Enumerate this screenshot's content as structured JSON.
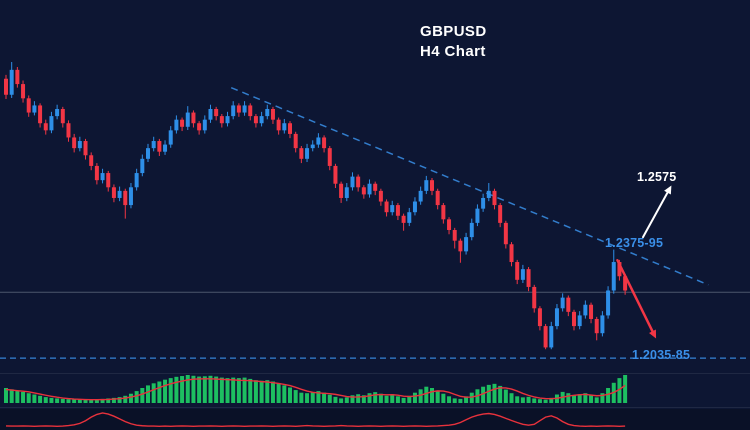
{
  "title": {
    "symbol": "GBPUSD",
    "timeframe": "H4 Chart"
  },
  "annotations": {
    "target": "1.2575",
    "resistance": "1.2375-95",
    "support": "1.2035-85"
  },
  "colors": {
    "background": "#0d1633",
    "bull": "#2e8fe8",
    "bear": "#f23645",
    "annotation_blue": "#3a8fe8",
    "hist_green": "#1dbf61",
    "signal_red": "#e8323c",
    "gray_line": "#9aa3b2",
    "title_white": "#ffffff"
  },
  "chart_data": {
    "type": "candlestick",
    "symbol": "GBPUSD",
    "timeframe": "H4",
    "ylim": [
      1.2021,
      1.2937
    ],
    "levels": {
      "support_dashed_line": 1.206,
      "mid_gray_line": 1.2245
    },
    "trendline": {
      "style": "dashed",
      "anchors": [
        [
          40,
          1.282
        ],
        [
          124,
          1.2266
        ]
      ]
    },
    "price_annotations": [
      {
        "label": "1.2575",
        "type": "upside_target",
        "price": 1.2575
      },
      {
        "label": "1.2375-95",
        "type": "resistance_zone",
        "zone": [
          1.2375,
          1.2395
        ]
      },
      {
        "label": "1.2035-85",
        "type": "support_zone",
        "zone": [
          1.2035,
          1.2085
        ]
      }
    ],
    "arrows": [
      {
        "name": "bullish-breakout-arrow",
        "color": "#ffffff",
        "width": 2,
        "from": [
          112.5,
          1.24
        ],
        "to": [
          117.5,
          1.2545
        ]
      },
      {
        "name": "bearish-rejection-arrow",
        "color": "#f23645",
        "width": 2.5,
        "from": [
          108,
          1.2335
        ],
        "to": [
          114.8,
          1.2115
        ]
      }
    ],
    "candles": [
      [
        1.2845,
        1.2856,
        1.2788,
        1.28
      ],
      [
        1.28,
        1.2892,
        1.2791,
        1.287
      ],
      [
        1.287,
        1.2878,
        1.282,
        1.283
      ],
      [
        1.283,
        1.284,
        1.2778,
        1.279
      ],
      [
        1.279,
        1.2798,
        1.2738,
        1.275
      ],
      [
        1.275,
        1.2782,
        1.2742,
        1.277
      ],
      [
        1.277,
        1.2776,
        1.2708,
        1.272
      ],
      [
        1.272,
        1.273,
        1.2688,
        1.27
      ],
      [
        1.27,
        1.2752,
        1.2692,
        1.274
      ],
      [
        1.274,
        1.2772,
        1.2731,
        1.276
      ],
      [
        1.276,
        1.2766,
        1.2708,
        1.272
      ],
      [
        1.272,
        1.2728,
        1.2668,
        1.268
      ],
      [
        1.268,
        1.269,
        1.2638,
        1.265
      ],
      [
        1.265,
        1.2682,
        1.2641,
        1.267
      ],
      [
        1.267,
        1.2676,
        1.2618,
        1.263
      ],
      [
        1.263,
        1.2638,
        1.2588,
        1.26
      ],
      [
        1.26,
        1.2608,
        1.2548,
        1.256
      ],
      [
        1.256,
        1.2592,
        1.2551,
        1.258
      ],
      [
        1.258,
        1.2586,
        1.2528,
        1.254
      ],
      [
        1.254,
        1.2548,
        1.2498,
        1.251
      ],
      [
        1.251,
        1.2542,
        1.2501,
        1.253
      ],
      [
        1.253,
        1.2536,
        1.2452,
        1.249
      ],
      [
        1.249,
        1.2552,
        1.2481,
        1.254
      ],
      [
        1.254,
        1.2592,
        1.2531,
        1.258
      ],
      [
        1.258,
        1.2632,
        1.2571,
        1.262
      ],
      [
        1.262,
        1.2662,
        1.2611,
        1.265
      ],
      [
        1.265,
        1.2682,
        1.2641,
        1.267
      ],
      [
        1.267,
        1.2676,
        1.2628,
        1.264
      ],
      [
        1.264,
        1.2672,
        1.2631,
        1.266
      ],
      [
        1.266,
        1.2712,
        1.2651,
        1.27
      ],
      [
        1.27,
        1.2742,
        1.2691,
        1.273
      ],
      [
        1.273,
        1.2736,
        1.2698,
        1.271
      ],
      [
        1.271,
        1.2768,
        1.2701,
        1.275
      ],
      [
        1.275,
        1.2756,
        1.2708,
        1.272
      ],
      [
        1.272,
        1.2726,
        1.2688,
        1.27
      ],
      [
        1.27,
        1.2742,
        1.2691,
        1.273
      ],
      [
        1.273,
        1.2772,
        1.2721,
        1.276
      ],
      [
        1.276,
        1.2766,
        1.2728,
        1.274
      ],
      [
        1.274,
        1.2746,
        1.2708,
        1.272
      ],
      [
        1.272,
        1.2752,
        1.2711,
        1.274
      ],
      [
        1.274,
        1.2782,
        1.2731,
        1.277
      ],
      [
        1.277,
        1.2776,
        1.2738,
        1.275
      ],
      [
        1.275,
        1.2782,
        1.2741,
        1.277
      ],
      [
        1.277,
        1.2776,
        1.2728,
        1.274
      ],
      [
        1.274,
        1.2746,
        1.2708,
        1.272
      ],
      [
        1.272,
        1.2752,
        1.2711,
        1.274
      ],
      [
        1.274,
        1.2772,
        1.2731,
        1.276
      ],
      [
        1.276,
        1.2766,
        1.2718,
        1.273
      ],
      [
        1.273,
        1.2736,
        1.2688,
        1.27
      ],
      [
        1.27,
        1.2732,
        1.2691,
        1.272
      ],
      [
        1.272,
        1.2726,
        1.2678,
        1.269
      ],
      [
        1.269,
        1.2696,
        1.2638,
        1.265
      ],
      [
        1.265,
        1.2656,
        1.2608,
        1.262
      ],
      [
        1.262,
        1.2662,
        1.2611,
        1.265
      ],
      [
        1.265,
        1.2672,
        1.2641,
        1.266
      ],
      [
        1.266,
        1.2692,
        1.2651,
        1.268
      ],
      [
        1.268,
        1.2686,
        1.2638,
        1.265
      ],
      [
        1.265,
        1.2656,
        1.2588,
        1.26
      ],
      [
        1.26,
        1.2606,
        1.2538,
        1.255
      ],
      [
        1.255,
        1.2556,
        1.2496,
        1.251
      ],
      [
        1.251,
        1.2552,
        1.2501,
        1.254
      ],
      [
        1.254,
        1.2582,
        1.2531,
        1.257
      ],
      [
        1.257,
        1.2576,
        1.2528,
        1.254
      ],
      [
        1.254,
        1.2546,
        1.2508,
        1.252
      ],
      [
        1.252,
        1.2562,
        1.2511,
        1.255
      ],
      [
        1.255,
        1.2556,
        1.2518,
        1.253
      ],
      [
        1.253,
        1.2536,
        1.2488,
        1.25
      ],
      [
        1.25,
        1.2506,
        1.2458,
        1.247
      ],
      [
        1.247,
        1.2502,
        1.2461,
        1.249
      ],
      [
        1.249,
        1.2496,
        1.2448,
        1.246
      ],
      [
        1.246,
        1.2466,
        1.2418,
        1.244
      ],
      [
        1.244,
        1.2482,
        1.2431,
        1.247
      ],
      [
        1.247,
        1.2512,
        1.2461,
        1.25
      ],
      [
        1.25,
        1.2542,
        1.2491,
        1.253
      ],
      [
        1.253,
        1.2572,
        1.2521,
        1.256
      ],
      [
        1.256,
        1.2566,
        1.2518,
        1.253
      ],
      [
        1.253,
        1.2536,
        1.2478,
        1.249
      ],
      [
        1.249,
        1.2496,
        1.2438,
        1.245
      ],
      [
        1.245,
        1.2456,
        1.2408,
        1.242
      ],
      [
        1.242,
        1.2426,
        1.2368,
        1.239
      ],
      [
        1.239,
        1.2396,
        1.2328,
        1.236
      ],
      [
        1.236,
        1.2412,
        1.2351,
        1.24
      ],
      [
        1.24,
        1.2452,
        1.2391,
        1.244
      ],
      [
        1.244,
        1.2492,
        1.2431,
        1.248
      ],
      [
        1.248,
        1.2522,
        1.2471,
        1.251
      ],
      [
        1.251,
        1.2552,
        1.2501,
        1.253
      ],
      [
        1.253,
        1.2536,
        1.2478,
        1.249
      ],
      [
        1.249,
        1.2496,
        1.2428,
        1.244
      ],
      [
        1.244,
        1.2446,
        1.2368,
        1.238
      ],
      [
        1.238,
        1.2386,
        1.2318,
        1.233
      ],
      [
        1.233,
        1.2336,
        1.2268,
        1.228
      ],
      [
        1.228,
        1.2322,
        1.2271,
        1.231
      ],
      [
        1.231,
        1.2316,
        1.2248,
        1.226
      ],
      [
        1.226,
        1.2266,
        1.2188,
        1.22
      ],
      [
        1.22,
        1.2206,
        1.2138,
        1.215
      ],
      [
        1.215,
        1.2156,
        1.2085,
        1.209
      ],
      [
        1.209,
        1.2162,
        1.2085,
        1.215
      ],
      [
        1.215,
        1.2212,
        1.2141,
        1.22
      ],
      [
        1.22,
        1.2242,
        1.2191,
        1.223
      ],
      [
        1.223,
        1.2236,
        1.2178,
        1.219
      ],
      [
        1.219,
        1.2196,
        1.2138,
        1.215
      ],
      [
        1.215,
        1.2192,
        1.2141,
        1.218
      ],
      [
        1.218,
        1.2222,
        1.2171,
        1.221
      ],
      [
        1.221,
        1.2216,
        1.2158,
        1.217
      ],
      [
        1.217,
        1.2176,
        1.211,
        1.213
      ],
      [
        1.213,
        1.2192,
        1.2121,
        1.218
      ],
      [
        1.218,
        1.2262,
        1.2171,
        1.225
      ],
      [
        1.225,
        1.2365,
        1.2241,
        1.233
      ],
      [
        1.233,
        1.2336,
        1.2278,
        1.229
      ],
      [
        1.229,
        1.2296,
        1.2238,
        1.225
      ]
    ],
    "indicators": {
      "histogram": {
        "type": "macd_histogram",
        "color": "#1dbf61",
        "signal_color": "#e8323c",
        "values": [
          0.5,
          0.45,
          0.4,
          0.35,
          0.3,
          0.25,
          0.2,
          0.15,
          0.12,
          0.1,
          0.08,
          0.07,
          0.06,
          0.06,
          0.05,
          0.05,
          0.06,
          0.08,
          0.1,
          0.12,
          0.15,
          0.2,
          0.28,
          0.38,
          0.5,
          0.6,
          0.68,
          0.75,
          0.82,
          0.88,
          0.93,
          0.96,
          1.0,
          0.97,
          0.94,
          0.95,
          0.97,
          0.94,
          0.9,
          0.88,
          0.9,
          0.88,
          0.9,
          0.85,
          0.8,
          0.78,
          0.8,
          0.75,
          0.68,
          0.6,
          0.52,
          0.42,
          0.32,
          0.3,
          0.34,
          0.38,
          0.32,
          0.24,
          0.16,
          0.1,
          0.14,
          0.22,
          0.26,
          0.22,
          0.3,
          0.34,
          0.28,
          0.2,
          0.26,
          0.18,
          0.12,
          0.2,
          0.32,
          0.45,
          0.55,
          0.5,
          0.38,
          0.28,
          0.18,
          0.1,
          0.08,
          0.18,
          0.32,
          0.45,
          0.55,
          0.62,
          0.66,
          0.58,
          0.44,
          0.3,
          0.18,
          0.14,
          0.16,
          0.1,
          0.07,
          0.05,
          0.12,
          0.25,
          0.35,
          0.3,
          0.22,
          0.26,
          0.3,
          0.22,
          0.14,
          0.3,
          0.5,
          0.7,
          0.88,
          1.0
        ]
      },
      "oscillator": {
        "type": "line",
        "color": "#e8323c",
        "values": [
          0.06,
          0.05,
          0.05,
          0.06,
          0.05,
          0.04,
          0.05,
          0.06,
          0.05,
          0.04,
          0.05,
          0.08,
          0.12,
          0.2,
          0.35,
          0.55,
          0.7,
          0.78,
          0.72,
          0.6,
          0.45,
          0.3,
          0.18,
          0.1,
          0.07,
          0.05,
          0.05,
          0.04,
          0.05,
          0.04,
          0.05,
          0.06,
          0.05,
          0.04,
          0.05,
          0.05,
          0.06,
          0.05,
          0.04,
          0.05,
          0.06,
          0.05,
          0.04,
          0.05,
          0.05,
          0.06,
          0.05,
          0.04,
          0.05,
          0.06,
          0.05,
          0.04,
          0.06,
          0.08,
          0.06,
          0.05,
          0.04,
          0.05,
          0.06,
          0.08,
          0.06,
          0.05,
          0.04,
          0.05,
          0.06,
          0.05,
          0.04,
          0.05,
          0.06,
          0.05,
          0.04,
          0.05,
          0.06,
          0.05,
          0.04,
          0.05,
          0.06,
          0.08,
          0.1,
          0.15,
          0.25,
          0.4,
          0.55,
          0.65,
          0.72,
          0.75,
          0.7,
          0.6,
          0.48,
          0.36,
          0.25,
          0.15,
          0.1,
          0.15,
          0.35,
          0.55,
          0.62,
          0.5,
          0.3,
          0.15,
          0.08,
          0.05,
          0.04,
          0.05,
          0.04,
          0.05,
          0.06,
          0.05,
          0.04,
          0.05
        ]
      }
    }
  }
}
